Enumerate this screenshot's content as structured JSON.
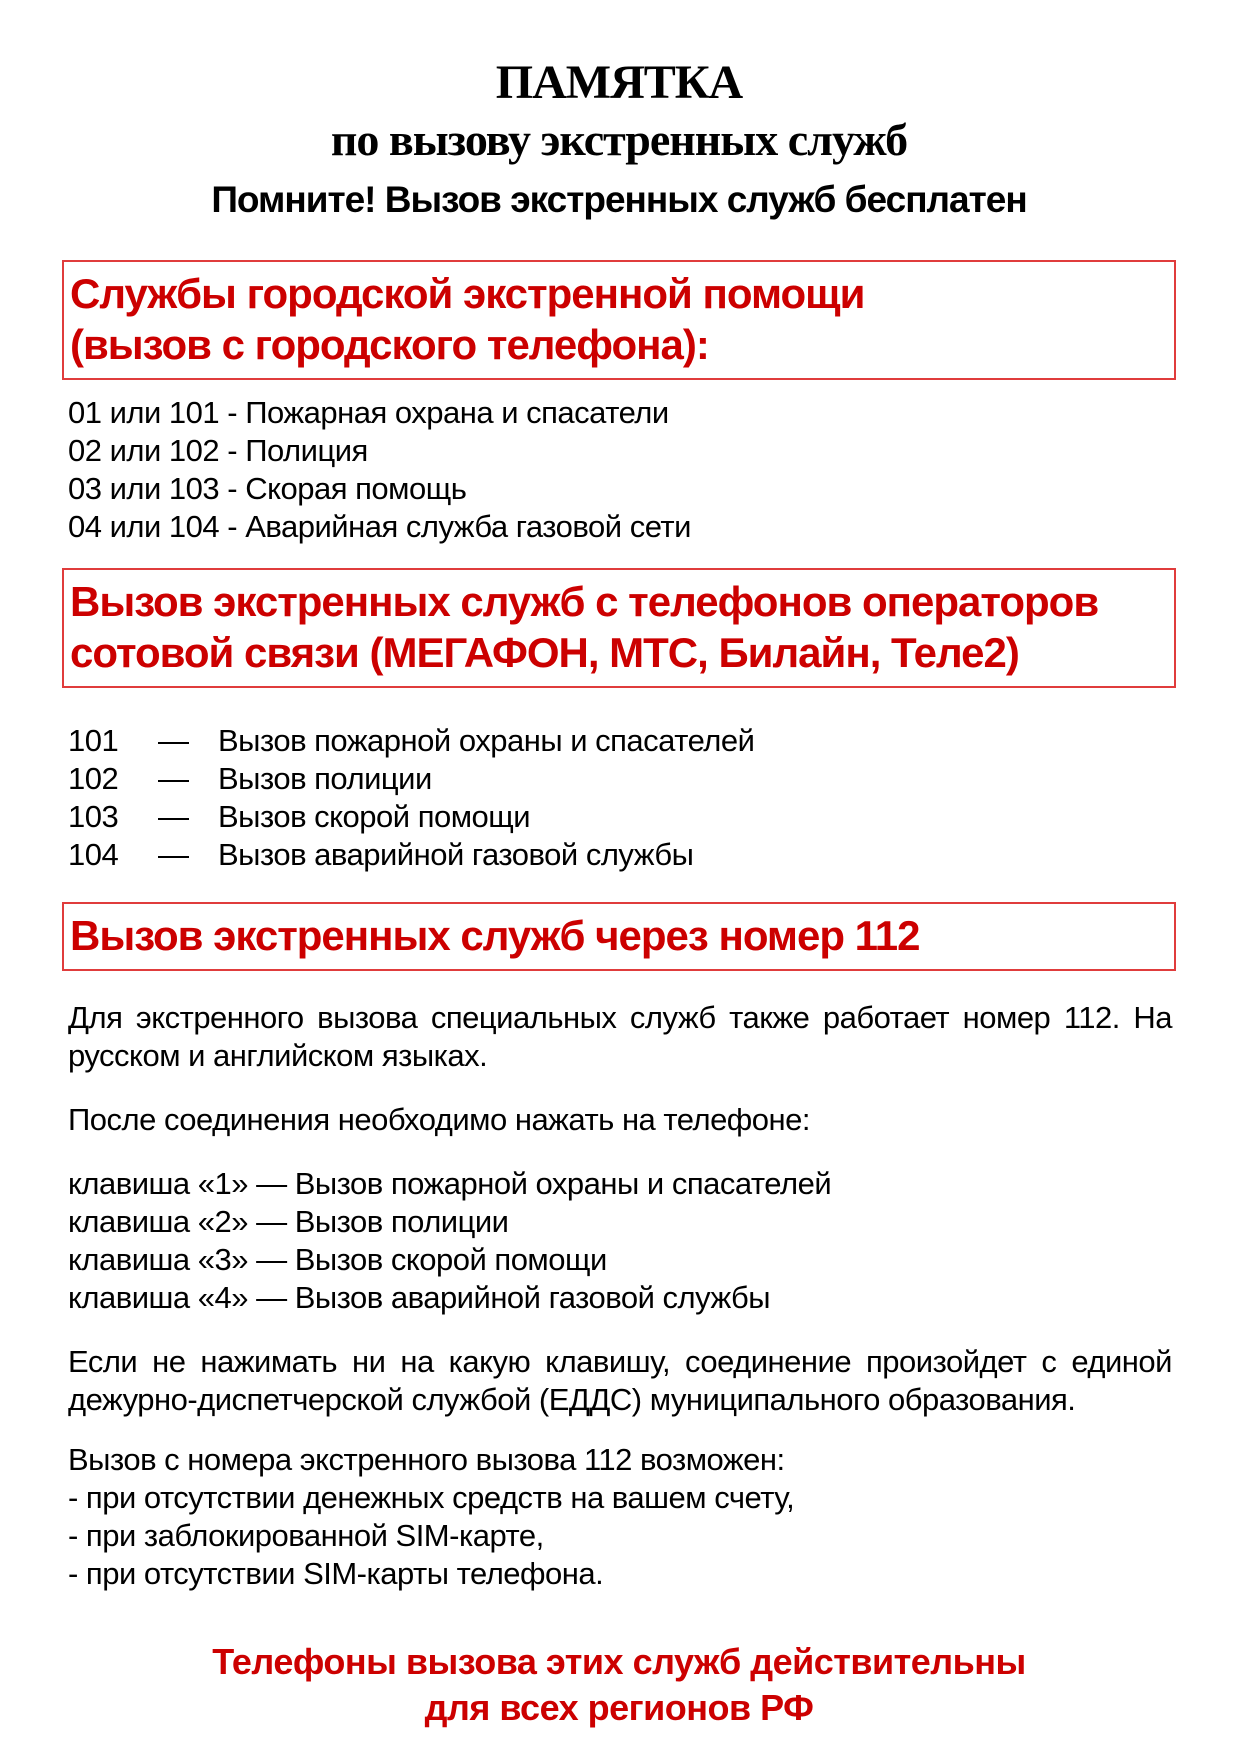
{
  "page": {
    "title": "ПАМЯТКА",
    "subtitle": "по вызову экстренных служб",
    "note": "Помните! Вызов экстренных служб бесплатен"
  },
  "colors": {
    "accent_red": "#cc0000",
    "box_border_red": "#e03c3c",
    "text_black": "#000000",
    "background": "#ffffff"
  },
  "section_city": {
    "heading_line1": "Службы городской экстренной помощи",
    "heading_line2": "(вызов с городского телефона):",
    "items": [
      "01 или 101 - Пожарная охрана и спасатели",
      "02 или 102 - Полиция",
      "03 или 103 - Скорая помощь",
      "04 или 104 - Аварийная служба газовой сети"
    ]
  },
  "section_mobile": {
    "heading_line1": "Вызов экстренных служб с телефонов операторов",
    "heading_line2": "сотовой связи (МЕГАФОН, МТС, Билайн, Теле2)",
    "items": [
      {
        "num": "101",
        "dash": "—",
        "label": "Вызов пожарной охраны и спасателей"
      },
      {
        "num": "102",
        "dash": "—",
        "label": "Вызов полиции"
      },
      {
        "num": "103",
        "dash": "—",
        "label": "Вызов скорой помощи"
      },
      {
        "num": "104",
        "dash": "—",
        "label": "Вызов аварийной газовой службы"
      }
    ]
  },
  "section_112": {
    "heading": "Вызов экстренных служб через номер 112",
    "intro": "Для экстренного вызова специальных служб также работает номер 112. На русском и английском языках.",
    "after_connect": "После соединения необходимо нажать на телефоне:",
    "keys": [
      "клавиша «1» — Вызов пожарной охраны и спасателей",
      "клавиша «2» — Вызов полиции",
      "клавиша «3» — Вызов скорой помощи",
      "клавиша «4» — Вызов аварийной газовой службы"
    ],
    "no_key_note": "Если не нажимать ни на какую клавишу, соединение произойдет с единой дежурно-диспетчерской службой (ЕДДС) муниципального образования.",
    "possible_header": "Вызов с номера экстренного вызова 112 возможен:",
    "conditions": [
      "- при отсутствии денежных средств на вашем счету,",
      "- при заблокированной SIM-карте,",
      "- при отсутствии SIM-карты телефона."
    ]
  },
  "footer": {
    "line1": "Телефоны вызова этих служб действительны",
    "line2": "для всех регионов РФ"
  }
}
